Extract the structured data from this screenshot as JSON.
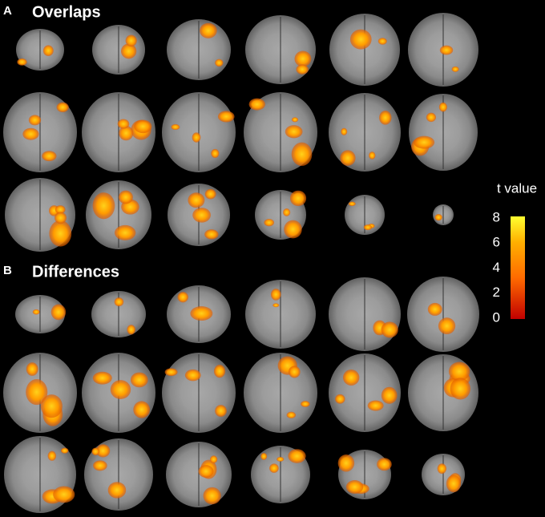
{
  "panels": [
    {
      "letter": "A",
      "title": "Overlaps"
    },
    {
      "letter": "B",
      "title": "Differences"
    }
  ],
  "colorbar": {
    "label": "t value",
    "lim": [
      0,
      8
    ],
    "ticks": [
      0,
      2,
      4,
      6,
      8
    ]
  }
}
